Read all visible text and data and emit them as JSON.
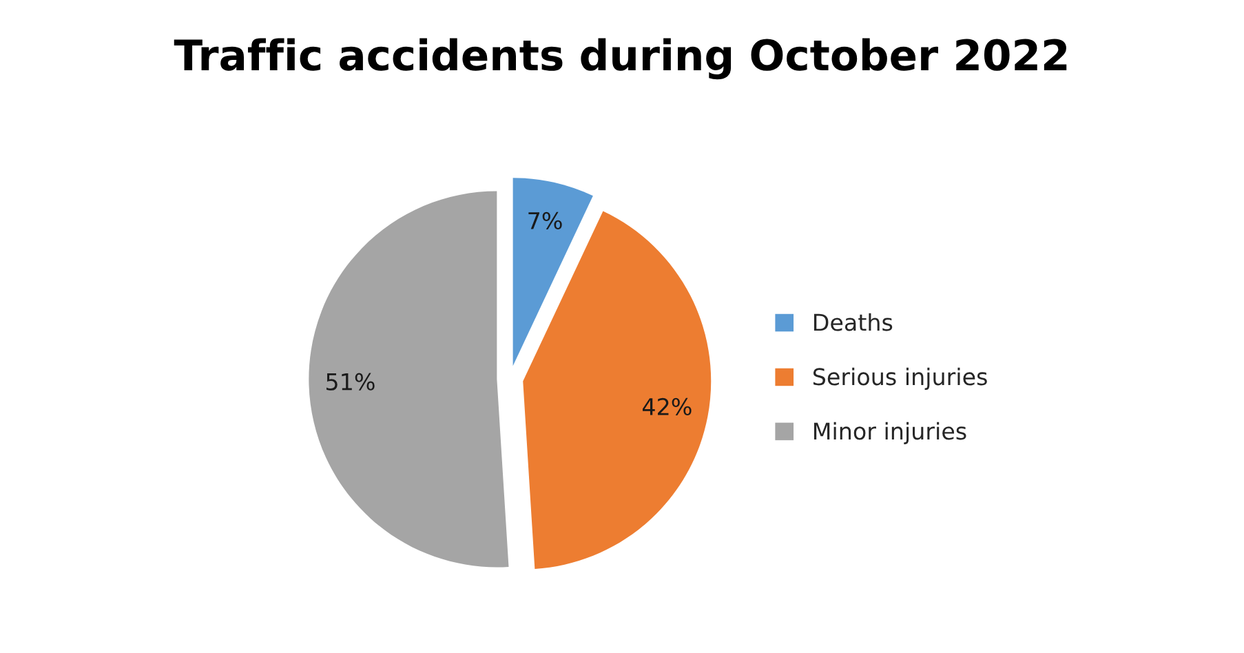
{
  "chart_data": {
    "type": "pie",
    "title": "Traffic accidents during October 2022",
    "categories": [
      "Deaths",
      "Serious injuries",
      "Minor injuries"
    ],
    "values": [
      7,
      42,
      51
    ],
    "value_labels": [
      "7%",
      "42%",
      "51%"
    ],
    "colors": [
      "#5b9bd5",
      "#ed7d31",
      "#a5a5a5"
    ],
    "legend": "right"
  }
}
